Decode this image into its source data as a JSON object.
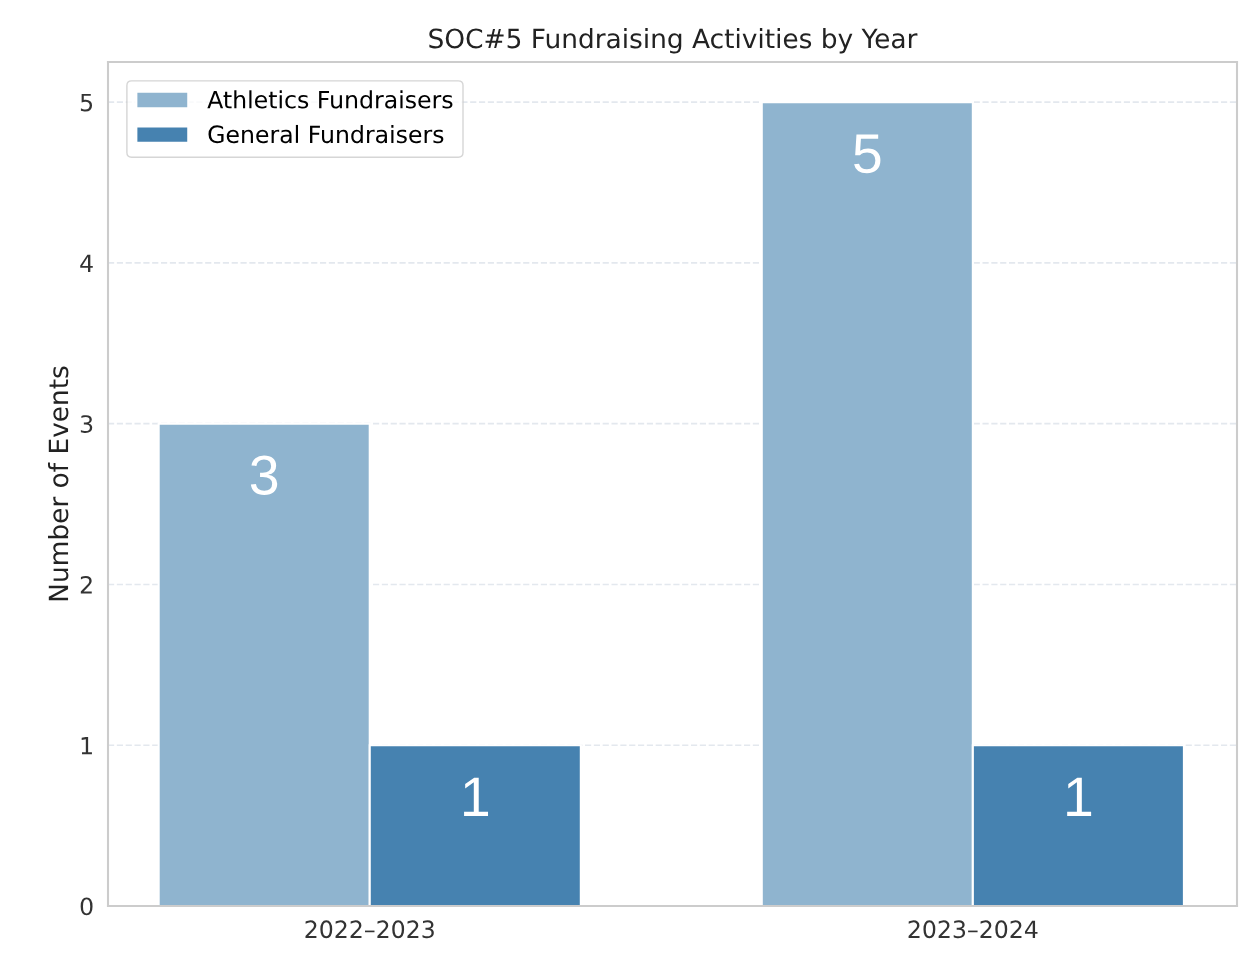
{
  "chart_data": {
    "type": "bar",
    "title": "SOC#5 Fundraising Activities by Year",
    "ylabel": "Number of Events",
    "categories": [
      "2022–2023",
      "2023–2024"
    ],
    "series": [
      {
        "name": "Athletics Fundraisers",
        "color": "#8fb4cf",
        "values": [
          3,
          5
        ]
      },
      {
        "name": "General Fundraisers",
        "color": "#4682b0",
        "values": [
          1,
          1
        ]
      }
    ],
    "ylim": [
      0,
      5.25
    ],
    "yticks": [
      0,
      1,
      2,
      3,
      4,
      5
    ],
    "grid": "y",
    "legend": "top left",
    "data_labels": true
  }
}
